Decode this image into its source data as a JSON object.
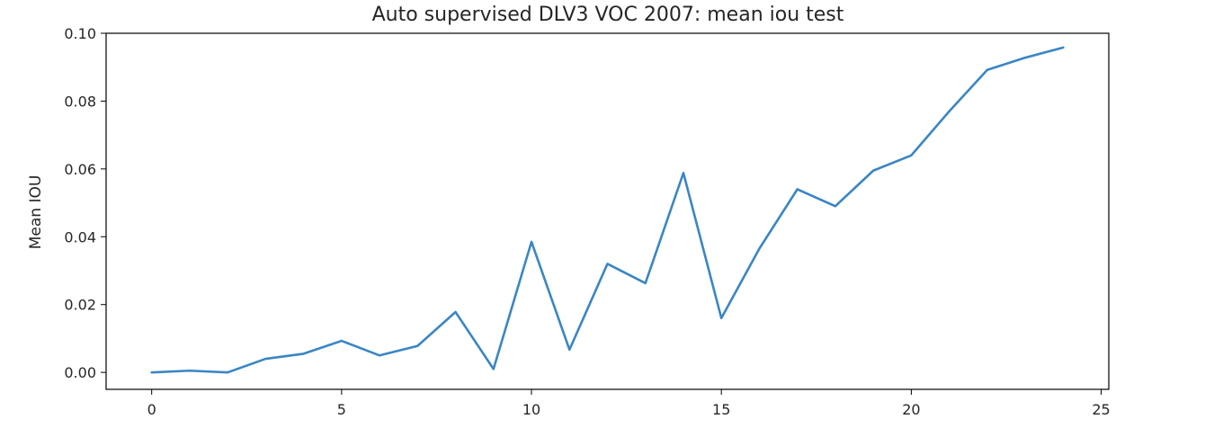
{
  "chart_data": {
    "type": "line",
    "title": "Auto supervised DLV3 VOC 2007:  mean iou test",
    "xlabel": "",
    "ylabel": "Mean IOU",
    "xlim": [
      -1.2,
      25.2
    ],
    "ylim": [
      -0.005,
      0.1
    ],
    "xticks": [
      0,
      5,
      10,
      15,
      20,
      25
    ],
    "xtick_labels": [
      "0",
      "5",
      "10",
      "15",
      "20",
      "25"
    ],
    "yticks": [
      0.0,
      0.02,
      0.04,
      0.06,
      0.08,
      0.1
    ],
    "ytick_labels": [
      "0.00",
      "0.02",
      "0.04",
      "0.06",
      "0.08",
      "0.10"
    ],
    "grid": false,
    "series": [
      {
        "color": "#3a86c4",
        "x": [
          0,
          1,
          2,
          3,
          4,
          5,
          6,
          7,
          8,
          9,
          10,
          11,
          12,
          13,
          14,
          15,
          16,
          17,
          18,
          19,
          20,
          21,
          22,
          23,
          24
        ],
        "values": [
          0.0,
          0.0005,
          0.0,
          0.004,
          0.0055,
          0.0093,
          0.005,
          0.0078,
          0.0178,
          0.001,
          0.0385,
          0.0067,
          0.032,
          0.0263,
          0.0588,
          0.016,
          0.0365,
          0.054,
          0.049,
          0.0595,
          0.064,
          0.077,
          0.0892,
          0.0928,
          0.0958
        ]
      }
    ]
  }
}
